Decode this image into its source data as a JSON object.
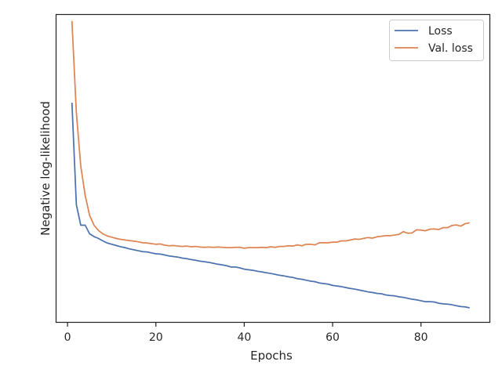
{
  "chart_data": {
    "type": "line",
    "title": "",
    "xlabel": "Epochs",
    "ylabel": "Negative log-likelihood",
    "xlim": [
      -2.5,
      95.5
    ],
    "ylim": [
      0,
      1
    ],
    "xticks": [
      0,
      20,
      40,
      60,
      80
    ],
    "xtick_labels": [
      "0",
      "20",
      "40",
      "60",
      "80"
    ],
    "yticks_visible": false,
    "grid": false,
    "legend_position": "top-right",
    "series": [
      {
        "name": "Loss",
        "color": "#4c72b0",
        "x": [
          1,
          2,
          3,
          4,
          5,
          6,
          7,
          8,
          9,
          10,
          11,
          12,
          13,
          14,
          15,
          16,
          17,
          18,
          19,
          20,
          21,
          22,
          23,
          24,
          25,
          26,
          27,
          28,
          29,
          30,
          31,
          32,
          33,
          34,
          35,
          36,
          37,
          38,
          39,
          40,
          41,
          42,
          43,
          44,
          45,
          46,
          47,
          48,
          49,
          50,
          51,
          52,
          53,
          54,
          55,
          56,
          57,
          58,
          59,
          60,
          61,
          62,
          63,
          64,
          65,
          66,
          67,
          68,
          69,
          70,
          71,
          72,
          73,
          74,
          75,
          76,
          77,
          78,
          79,
          80,
          81,
          82,
          83,
          84,
          85,
          86,
          87,
          88,
          89,
          90,
          91
        ],
        "y": [
          0.714,
          0.382,
          0.315,
          0.315,
          0.287,
          0.278,
          0.272,
          0.264,
          0.257,
          0.253,
          0.249,
          0.245,
          0.242,
          0.238,
          0.235,
          0.232,
          0.229,
          0.228,
          0.225,
          0.222,
          0.221,
          0.218,
          0.215,
          0.213,
          0.211,
          0.208,
          0.206,
          0.203,
          0.201,
          0.198,
          0.196,
          0.194,
          0.191,
          0.188,
          0.186,
          0.183,
          0.179,
          0.179,
          0.176,
          0.172,
          0.17,
          0.168,
          0.165,
          0.163,
          0.16,
          0.158,
          0.155,
          0.152,
          0.15,
          0.147,
          0.145,
          0.141,
          0.139,
          0.136,
          0.133,
          0.131,
          0.127,
          0.125,
          0.123,
          0.119,
          0.117,
          0.115,
          0.112,
          0.109,
          0.107,
          0.104,
          0.101,
          0.098,
          0.096,
          0.093,
          0.092,
          0.088,
          0.086,
          0.085,
          0.082,
          0.08,
          0.077,
          0.074,
          0.072,
          0.069,
          0.066,
          0.066,
          0.065,
          0.061,
          0.059,
          0.058,
          0.056,
          0.053,
          0.05,
          0.049,
          0.046
        ]
      },
      {
        "name": "Val. loss",
        "color": "#dd8452",
        "x": [
          1,
          2,
          3,
          4,
          5,
          6,
          7,
          8,
          9,
          10,
          11,
          12,
          13,
          14,
          15,
          16,
          17,
          18,
          19,
          20,
          21,
          22,
          23,
          24,
          25,
          26,
          27,
          28,
          29,
          30,
          31,
          32,
          33,
          34,
          35,
          36,
          37,
          38,
          39,
          40,
          41,
          42,
          43,
          44,
          45,
          46,
          47,
          48,
          49,
          50,
          51,
          52,
          53,
          54,
          55,
          56,
          57,
          58,
          59,
          60,
          61,
          62,
          63,
          64,
          65,
          66,
          67,
          68,
          69,
          70,
          71,
          72,
          73,
          74,
          75,
          76,
          77,
          78,
          79,
          80,
          81,
          82,
          83,
          84,
          85,
          86,
          87,
          88,
          89,
          90,
          91
        ],
        "y": [
          0.98,
          0.682,
          0.507,
          0.412,
          0.347,
          0.315,
          0.298,
          0.287,
          0.28,
          0.276,
          0.272,
          0.269,
          0.267,
          0.265,
          0.263,
          0.261,
          0.258,
          0.257,
          0.255,
          0.253,
          0.254,
          0.25,
          0.248,
          0.249,
          0.247,
          0.246,
          0.247,
          0.245,
          0.246,
          0.244,
          0.243,
          0.244,
          0.243,
          0.244,
          0.243,
          0.242,
          0.242,
          0.243,
          0.243,
          0.24,
          0.242,
          0.242,
          0.242,
          0.243,
          0.242,
          0.245,
          0.243,
          0.246,
          0.246,
          0.248,
          0.247,
          0.251,
          0.248,
          0.253,
          0.253,
          0.251,
          0.258,
          0.258,
          0.258,
          0.26,
          0.26,
          0.264,
          0.264,
          0.267,
          0.27,
          0.269,
          0.272,
          0.275,
          0.273,
          0.277,
          0.279,
          0.281,
          0.281,
          0.283,
          0.285,
          0.294,
          0.289,
          0.29,
          0.3,
          0.299,
          0.297,
          0.302,
          0.303,
          0.301,
          0.307,
          0.307,
          0.314,
          0.316,
          0.312,
          0.32,
          0.323
        ]
      }
    ]
  }
}
